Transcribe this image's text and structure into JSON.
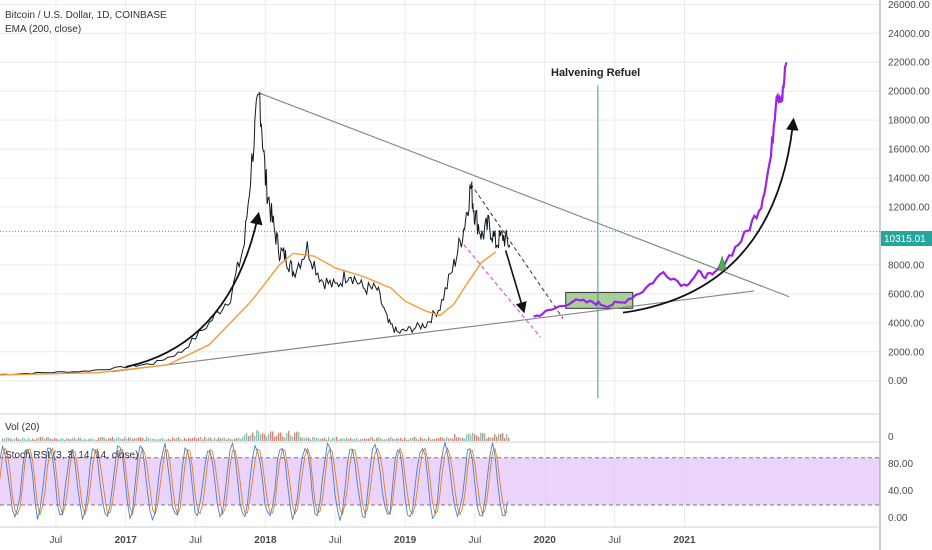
{
  "header": {
    "symbol_line": "Bitcoin / U.S. Dollar, 1D, COINBASE",
    "indicator_line": "EMA (200, close)"
  },
  "annotations": {
    "halvening_label": "Halvening Refuel",
    "price_tag": "10315.01"
  },
  "panes": {
    "volume_label": "Vol (20)",
    "stoch_label": "Stoch RSI (3, 3, 14, 14, close)"
  },
  "colors": {
    "price": "#131722",
    "ema": "#f39c35",
    "projection": "#9b23ea",
    "trendline": "#888888",
    "price_line": "#26a69a",
    "grid": "#e9ecef",
    "stoch_band": "#e3c6fa",
    "box_fill": "#7bb661"
  },
  "chart_data": [
    {
      "type": "line",
      "title": "Bitcoin / U.S. Dollar, 1D, COINBASE",
      "x_axis": {
        "tick_labels": [
          "Jul",
          "2017",
          "Jul",
          "2018",
          "Jul",
          "2019",
          "Jul",
          "2020",
          "Jul",
          "2021"
        ],
        "tick_t": [
          2016.5,
          2017.0,
          2017.5,
          2018.0,
          2018.5,
          2019.0,
          2019.5,
          2020.0,
          2020.5,
          2021.0
        ],
        "range": [
          2016.1,
          2022.4
        ]
      },
      "y_axis": {
        "tick_values": [
          0,
          2000,
          4000,
          6000,
          8000,
          10000,
          12000,
          14000,
          16000,
          18000,
          20000,
          22000,
          24000,
          26000
        ],
        "tick_labels": [
          "0.00",
          "2000.00",
          "4000.00",
          "6000.00",
          "8000.00",
          "10000.00",
          "12000.00",
          "14000.00",
          "16000.00",
          "18000.00",
          "20000.00",
          "22000.00",
          "24000.00",
          "26000.00"
        ],
        "range": [
          -2300,
          26300
        ],
        "position": "right"
      },
      "series": [
        {
          "name": "BTC price",
          "x": [
            2016.1,
            2016.4,
            2016.7,
            2017.0,
            2017.2,
            2017.4,
            2017.6,
            2017.75,
            2017.85,
            2017.92,
            2017.96,
            2018.0,
            2018.05,
            2018.1,
            2018.15,
            2018.2,
            2018.3,
            2018.4,
            2018.5,
            2018.6,
            2018.7,
            2018.8,
            2018.88,
            2018.95,
            2019.05,
            2019.15,
            2019.25,
            2019.35,
            2019.42,
            2019.47,
            2019.5,
            2019.55,
            2019.6,
            2019.65,
            2019.7,
            2019.75
          ],
          "y": [
            430,
            550,
            650,
            950,
            1200,
            2000,
            4000,
            5800,
            9500,
            17000,
            19700,
            14000,
            11000,
            9000,
            8500,
            7500,
            9200,
            7000,
            6500,
            7500,
            6400,
            6300,
            4000,
            3300,
            3600,
            3900,
            5100,
            8000,
            10500,
            13400,
            11500,
            10000,
            10800,
            9500,
            10000,
            9400
          ]
        },
        {
          "name": "EMA (200, close)",
          "x": [
            2016.1,
            2016.8,
            2017.3,
            2017.6,
            2017.9,
            2018.1,
            2018.2,
            2018.35,
            2018.5,
            2018.7,
            2018.9,
            2019.0,
            2019.15,
            2019.25,
            2019.35,
            2019.45,
            2019.55,
            2019.65
          ],
          "y": [
            400,
            550,
            1100,
            2500,
            5500,
            8000,
            8800,
            8600,
            7800,
            7200,
            6400,
            5500,
            4800,
            4500,
            5300,
            6800,
            8200,
            8900
          ]
        },
        {
          "name": "Projection",
          "x": [
            2019.92,
            2020.05,
            2020.2,
            2020.35,
            2020.45,
            2020.55,
            2020.7,
            2020.85,
            2021.0,
            2021.1,
            2021.2,
            2021.32,
            2021.45,
            2021.55,
            2021.62,
            2021.66,
            2021.7,
            2021.73
          ],
          "y": [
            4400,
            4900,
            5500,
            5400,
            5200,
            5400,
            6200,
            7500,
            6600,
            7400,
            7200,
            8600,
            10300,
            12200,
            15500,
            20000,
            19500,
            22000
          ]
        }
      ],
      "lines": [
        {
          "name": "Upper trendline",
          "x": [
            2017.95,
            2021.75
          ],
          "y": [
            19900,
            5800
          ]
        },
        {
          "name": "Lower trendline",
          "x": [
            2016.9,
            2021.5
          ],
          "y": [
            620,
            6200
          ]
        },
        {
          "name": "Halvening Refuel",
          "x": [
            2020.38,
            2020.38
          ],
          "y": [
            -1200,
            20400
          ]
        },
        {
          "name": "10315.01",
          "y": [
            10315.01,
            10315.01
          ]
        }
      ],
      "box": {
        "x": [
          2020.15,
          2020.63
        ],
        "y": [
          5000,
          6100
        ]
      }
    },
    {
      "type": "bar",
      "title": "Vol (20)",
      "y_axis": {
        "tick_labels": [
          "0"
        ]
      }
    },
    {
      "type": "line",
      "title": "Stoch RSI (3, 3, 14, 14, close)",
      "y_axis": {
        "tick_values": [
          0,
          20,
          40,
          60,
          80
        ],
        "tick_labels": [
          "0.00",
          "40.00",
          "80.00"
        ],
        "band": [
          20,
          80
        ],
        "range": [
          -8,
          100
        ]
      }
    }
  ]
}
